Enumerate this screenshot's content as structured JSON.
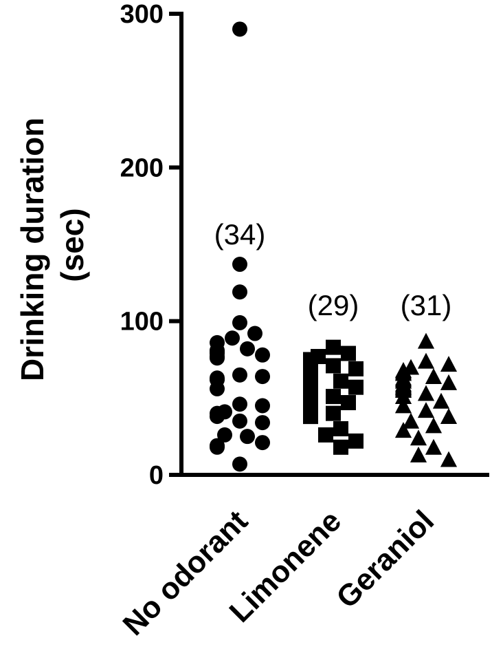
{
  "chart_data": {
    "type": "scatter",
    "title": "",
    "ylabel_lines": [
      "Drinking duration",
      "(sec)"
    ],
    "xlabel": "",
    "ylim": [
      0,
      300
    ],
    "yticks": [
      "0",
      "100",
      "200",
      "300"
    ],
    "ytick_values": [
      0,
      100,
      200,
      300
    ],
    "grid": false,
    "categories": [
      "No odorant",
      "Limonene",
      "Geraniol"
    ],
    "series": [
      {
        "category": "No odorant",
        "marker": "circle",
        "n_label": "(34)",
        "values": [
          290,
          137,
          119,
          99,
          92,
          89,
          86,
          82,
          81,
          80,
          80,
          79,
          78,
          77,
          76,
          65,
          64,
          63,
          62,
          62,
          56,
          46,
          45,
          41,
          40,
          38,
          35,
          34,
          26,
          25,
          21,
          19,
          18,
          7
        ]
      },
      {
        "category": "Limonene",
        "marker": "square",
        "n_label": "(29)",
        "values": [
          83,
          79,
          77,
          75,
          73,
          71,
          69,
          67,
          65,
          63,
          62,
          61,
          60,
          58,
          57,
          56,
          55,
          53,
          51,
          49,
          47,
          44,
          42,
          40,
          38,
          30,
          26,
          22,
          18
        ]
      },
      {
        "category": "Geraniol",
        "marker": "triangle",
        "n_label": "(31)",
        "values": [
          87,
          74,
          72,
          70,
          68,
          67,
          66,
          64,
          63,
          62,
          61,
          60,
          59,
          58,
          57,
          57,
          56,
          55,
          53,
          51,
          48,
          45,
          42,
          38,
          35,
          32,
          29,
          24,
          18,
          13,
          10
        ]
      }
    ]
  }
}
